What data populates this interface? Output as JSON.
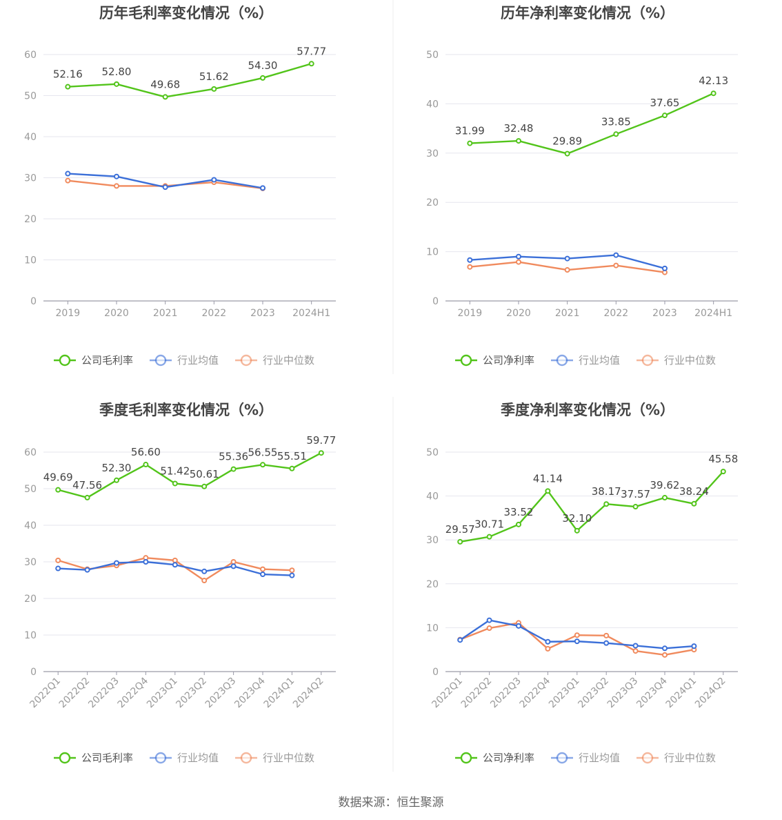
{
  "source_text": "数据来源：恒生聚源",
  "colors": {
    "company": "#52c41a",
    "avg": "#3b6fd8",
    "median": "#f08a5d",
    "axis_text": "#999999",
    "grid": "#e6e6ee",
    "title": "#444444",
    "label": "#444444"
  },
  "chart_data": [
    {
      "type": "line",
      "title": "历年毛利率变化情况（%）",
      "categories": [
        "2019",
        "2020",
        "2021",
        "2022",
        "2023",
        "2024H1"
      ],
      "ylim": [
        0,
        60
      ],
      "yticks": [
        0,
        10,
        20,
        30,
        40,
        50,
        60
      ],
      "rotate_xticks": false,
      "series": [
        {
          "name": "公司毛利率",
          "color": "#52c41a",
          "values": [
            52.16,
            52.8,
            49.68,
            51.62,
            54.3,
            57.77
          ],
          "labels": [
            "52.16",
            "52.80",
            "49.68",
            "51.62",
            "54.30",
            "57.77"
          ]
        },
        {
          "name": "行业均值",
          "color": "#3b6fd8",
          "values": [
            31.0,
            30.3,
            27.7,
            29.5,
            27.5,
            null
          ]
        },
        {
          "name": "行业中位数",
          "color": "#f08a5d",
          "values": [
            29.3,
            28.0,
            28.0,
            28.9,
            27.4,
            null
          ]
        }
      ],
      "legend": "bottom",
      "grid": true
    },
    {
      "type": "line",
      "title": "历年净利率变化情况（%）",
      "categories": [
        "2019",
        "2020",
        "2021",
        "2022",
        "2023",
        "2024H1"
      ],
      "ylim": [
        0,
        50
      ],
      "yticks": [
        0,
        10,
        20,
        30,
        40,
        50
      ],
      "rotate_xticks": false,
      "series": [
        {
          "name": "公司净利率",
          "color": "#52c41a",
          "values": [
            31.99,
            32.48,
            29.89,
            33.85,
            37.65,
            42.13
          ],
          "labels": [
            "31.99",
            "32.48",
            "29.89",
            "33.85",
            "37.65",
            "42.13"
          ]
        },
        {
          "name": "行业均值",
          "color": "#3b6fd8",
          "values": [
            8.3,
            9.0,
            8.6,
            9.3,
            6.6,
            null
          ]
        },
        {
          "name": "行业中位数",
          "color": "#f08a5d",
          "values": [
            6.9,
            7.9,
            6.3,
            7.2,
            5.8,
            null
          ]
        }
      ],
      "legend": "bottom",
      "grid": true
    },
    {
      "type": "line",
      "title": "季度毛利率变化情况（%）",
      "categories": [
        "2022Q1",
        "2022Q2",
        "2022Q3",
        "2022Q4",
        "2023Q1",
        "2023Q2",
        "2023Q3",
        "2023Q4",
        "2024Q1",
        "2024Q2"
      ],
      "ylim": [
        0,
        60
      ],
      "yticks": [
        0,
        10,
        20,
        30,
        40,
        50,
        60
      ],
      "rotate_xticks": true,
      "series": [
        {
          "name": "公司毛利率",
          "color": "#52c41a",
          "values": [
            49.69,
            47.56,
            52.3,
            56.6,
            51.42,
            50.61,
            55.36,
            56.55,
            55.51,
            59.77
          ],
          "labels": [
            "49.69",
            "47.56",
            "52.30",
            "56.60",
            "51.42",
            "50.61",
            "55.36",
            "56.55",
            "55.51",
            "59.77"
          ]
        },
        {
          "name": "行业均值",
          "color": "#3b6fd8",
          "values": [
            28.2,
            27.8,
            29.7,
            30.0,
            29.2,
            27.4,
            28.8,
            26.6,
            26.3,
            null
          ]
        },
        {
          "name": "行业中位数",
          "color": "#f08a5d",
          "values": [
            30.4,
            28.0,
            29.0,
            31.1,
            30.4,
            24.9,
            30.0,
            28.0,
            27.7,
            null
          ]
        }
      ],
      "legend": "bottom",
      "grid": true
    },
    {
      "type": "line",
      "title": "季度净利率变化情况（%）",
      "categories": [
        "2022Q1",
        "2022Q2",
        "2022Q3",
        "2022Q4",
        "2023Q1",
        "2023Q2",
        "2023Q3",
        "2023Q4",
        "2024Q1",
        "2024Q2"
      ],
      "ylim": [
        0,
        50
      ],
      "yticks": [
        0,
        10,
        20,
        30,
        40,
        50
      ],
      "rotate_xticks": true,
      "series": [
        {
          "name": "公司净利率",
          "color": "#52c41a",
          "values": [
            29.57,
            30.71,
            33.52,
            41.14,
            32.1,
            38.17,
            37.57,
            39.62,
            38.24,
            45.58
          ],
          "labels": [
            "29.57",
            "30.71",
            "33.52",
            "41.14",
            "32.10",
            "38.17",
            "37.57",
            "39.62",
            "38.24",
            "45.58"
          ]
        },
        {
          "name": "行业均值",
          "color": "#3b6fd8",
          "values": [
            7.2,
            11.7,
            10.4,
            6.8,
            6.9,
            6.5,
            5.9,
            5.3,
            5.8,
            null
          ]
        },
        {
          "name": "行业中位数",
          "color": "#f08a5d",
          "values": [
            7.3,
            9.9,
            11.1,
            5.2,
            8.3,
            8.2,
            4.7,
            3.8,
            5.0,
            null
          ]
        }
      ],
      "legend": "bottom",
      "grid": true
    }
  ]
}
